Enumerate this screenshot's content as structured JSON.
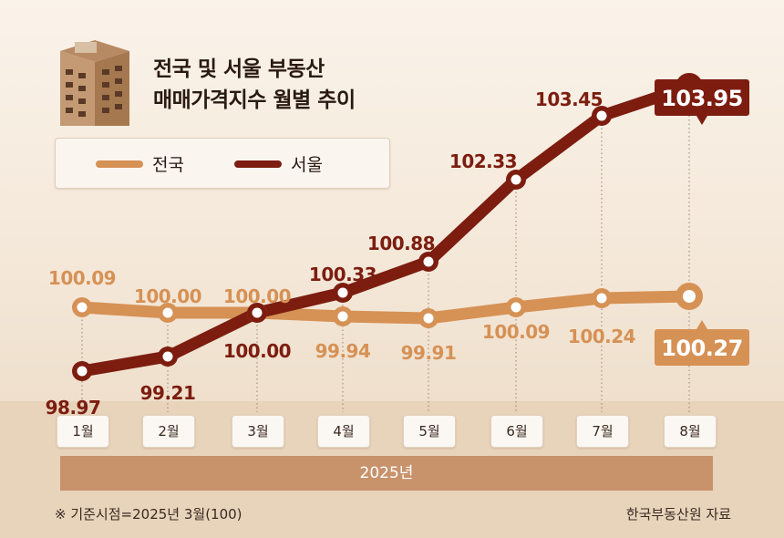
{
  "title": {
    "line1": "전국 및 서울 부동산",
    "line2": "매매가격지수 월별 추이"
  },
  "legend": {
    "national_label": "전국",
    "seoul_label": "서울"
  },
  "footer": {
    "note": "※ 기준시점=2025년 3월(100)",
    "source": "한국부동산원 자료"
  },
  "chart_data": {
    "type": "line",
    "categories": [
      "1월",
      "2월",
      "3월",
      "4월",
      "5월",
      "6월",
      "7월",
      "8월"
    ],
    "x_group_label": "2025년",
    "series": [
      {
        "name": "전국",
        "color": "#d69155",
        "values": [
          100.09,
          100.0,
          100.0,
          99.94,
          99.91,
          100.09,
          100.24,
          100.27
        ],
        "labels": [
          "100.09",
          "100.00",
          "100.00",
          "99.94",
          "99.91",
          "100.09",
          "100.24",
          "100.27"
        ]
      },
      {
        "name": "서울",
        "color": "#7c1d10",
        "values": [
          98.97,
          99.21,
          100.0,
          100.33,
          100.88,
          102.33,
          103.45,
          103.95
        ],
        "labels": [
          "98.97",
          "99.21",
          "100.00",
          "100.33",
          "100.88",
          "102.33",
          "103.45",
          "103.95"
        ]
      }
    ],
    "highlight_last": true,
    "grid": false,
    "legend_position": "top-left"
  }
}
